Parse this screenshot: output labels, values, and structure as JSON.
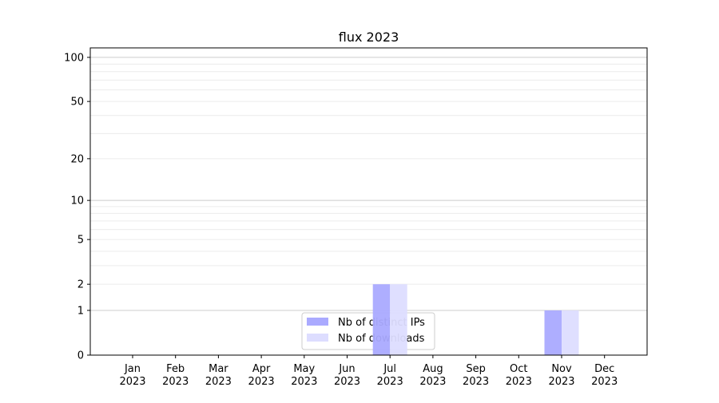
{
  "chart_data": {
    "type": "bar",
    "title": "flux 2023",
    "xlabel": "",
    "ylabel": "",
    "categories": [
      "Jan\n2023",
      "Feb\n2023",
      "Mar\n2023",
      "Apr\n2023",
      "May\n2023",
      "Jun\n2023",
      "Jul\n2023",
      "Aug\n2023",
      "Sep\n2023",
      "Oct\n2023",
      "Nov\n2023",
      "Dec\n2023"
    ],
    "series": [
      {
        "name": "Nb of distinct IPs",
        "color": "#aaaaff",
        "values": [
          0,
          0,
          0,
          0,
          0,
          0,
          2,
          0,
          0,
          0,
          1,
          0
        ]
      },
      {
        "name": "Nb of downloads",
        "color": "#ddddff",
        "values": [
          0,
          0,
          0,
          0,
          0,
          0,
          2,
          0,
          0,
          0,
          1,
          0
        ]
      }
    ],
    "yscale": "log(1+y)",
    "yticks": [
      0,
      1,
      2,
      5,
      10,
      20,
      50,
      100
    ],
    "ylim": [
      0,
      116
    ],
    "grid": true,
    "legend": "lower-center"
  }
}
